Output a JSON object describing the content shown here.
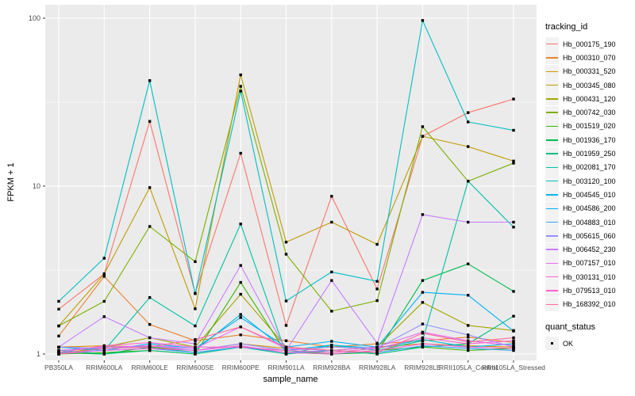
{
  "figure": {
    "background": "#FFFFFF",
    "panel_background": "#EBEBEB",
    "grid_color": "#FFFFFF",
    "axis_text_color": "#4D4D4D",
    "tick_mark_color": "#333333",
    "point_color": "#000000",
    "legend_key_background": "#F2F2F2"
  },
  "legend": {
    "title": "tracking_id",
    "secondary_title": "quant_status",
    "secondary_items": [
      {
        "label": "OK"
      }
    ]
  },
  "chart_data": {
    "type": "line",
    "title": "",
    "xlabel": "sample_name",
    "ylabel": "FPKM + 1",
    "y_scale": "log10",
    "ylim": [
      1,
      100
    ],
    "y_major_ticks": [
      1,
      10,
      100
    ],
    "y_minor_breaks": [
      3.162,
      31.623
    ],
    "grid": true,
    "legend_position": "right",
    "quant_status": "OK",
    "categories": [
      "PB350LA",
      "RRIM600LA",
      "RRIM600LE",
      "RRIM600SE",
      "RRIM600PE",
      "RRIM901LA",
      "RRIM928BA",
      "RRIM928LA",
      "RRIM928LE",
      "RRII105LA_Control",
      "RRII105LA_Stressed"
    ],
    "series": [
      {
        "name": "Hb_000175_190",
        "color": "#F8766D",
        "values": [
          1.85,
          3.0,
          24.3,
          2.3,
          15.7,
          1.48,
          8.7,
          2.44,
          19.8,
          27.4,
          33.0
        ]
      },
      {
        "name": "Hb_000310_070",
        "color": "#EA8331",
        "values": [
          1.28,
          2.9,
          1.5,
          1.2,
          1.3,
          1.2,
          1.1,
          1.15,
          1.2,
          1.26,
          1.17
        ]
      },
      {
        "name": "Hb_000331_520",
        "color": "#D89000",
        "values": [
          1.1,
          1.12,
          1.1,
          1.05,
          1.15,
          1.08,
          1.05,
          1.1,
          1.15,
          1.12,
          1.1
        ]
      },
      {
        "name": "Hb_000345_080",
        "color": "#C09B00",
        "values": [
          1.47,
          3.0,
          9.8,
          1.86,
          46.0,
          4.64,
          6.1,
          4.5,
          19.8,
          17.2,
          14.1
        ]
      },
      {
        "name": "Hb_000431_120",
        "color": "#A3A500",
        "values": [
          1.0,
          1.1,
          1.25,
          1.1,
          2.27,
          1.1,
          1.05,
          1.1,
          2.03,
          1.48,
          1.38
        ]
      },
      {
        "name": "Hb_000742_030",
        "color": "#7CAE00",
        "values": [
          1.47,
          2.06,
          5.75,
          3.55,
          39.3,
          3.93,
          1.8,
          2.08,
          22.6,
          10.7,
          13.7
        ]
      },
      {
        "name": "Hb_001519_020",
        "color": "#39B600",
        "values": [
          1.0,
          1.02,
          1.05,
          1.0,
          2.67,
          1.02,
          1.0,
          1.05,
          1.1,
          1.05,
          1.08
        ]
      },
      {
        "name": "Hb_001936_170",
        "color": "#00BB4E",
        "values": [
          1.02,
          1.0,
          1.1,
          1.02,
          1.1,
          1.05,
          1.0,
          1.02,
          2.74,
          3.44,
          2.36
        ]
      },
      {
        "name": "Hb_001959_250",
        "color": "#00BF7D",
        "values": [
          1.05,
          1.0,
          1.05,
          1.0,
          1.1,
          1.0,
          1.05,
          1.0,
          1.1,
          1.15,
          1.68
        ]
      },
      {
        "name": "Hb_002081_170",
        "color": "#00C1A3",
        "values": [
          1.1,
          1.05,
          2.17,
          1.47,
          5.95,
          1.0,
          1.13,
          1.05,
          1.2,
          10.7,
          5.7
        ]
      },
      {
        "name": "Hb_003120_100",
        "color": "#00BFC4",
        "values": [
          2.06,
          3.72,
          42.5,
          2.29,
          36.8,
          2.07,
          3.08,
          2.71,
          97.0,
          24.1,
          21.5
        ]
      },
      {
        "name": "Hb_004545_010",
        "color": "#00BAE0",
        "values": [
          1.05,
          1.08,
          1.12,
          1.05,
          1.72,
          1.05,
          1.13,
          1.08,
          1.22,
          1.1,
          1.15
        ]
      },
      {
        "name": "Hb_004586_200",
        "color": "#00B0F6",
        "values": [
          1.1,
          1.05,
          1.15,
          1.08,
          1.65,
          1.1,
          1.19,
          1.1,
          2.33,
          2.24,
          1.37
        ]
      },
      {
        "name": "Hb_004883_010",
        "color": "#35A2FF",
        "values": [
          1.02,
          1.05,
          1.08,
          1.02,
          1.1,
          1.02,
          1.05,
          1.02,
          1.12,
          1.08,
          1.05
        ]
      },
      {
        "name": "Hb_005615_060",
        "color": "#9590FF",
        "values": [
          1.1,
          1.08,
          1.12,
          1.05,
          1.15,
          1.05,
          1.1,
          1.08,
          1.51,
          1.3,
          1.1
        ]
      },
      {
        "name": "Hb_006452_230",
        "color": "#C77CFF",
        "values": [
          1.1,
          1.67,
          1.25,
          1.15,
          3.37,
          1.05,
          2.74,
          1.16,
          6.77,
          6.1,
          6.1
        ]
      },
      {
        "name": "Hb_007157_010",
        "color": "#E76BF3",
        "values": [
          1.05,
          1.1,
          1.12,
          1.08,
          1.45,
          1.08,
          1.05,
          1.1,
          1.35,
          1.2,
          1.12
        ]
      },
      {
        "name": "Hb_030131_010",
        "color": "#FA62DB",
        "values": [
          1.0,
          1.05,
          1.08,
          1.05,
          1.12,
          1.02,
          1.0,
          1.05,
          1.15,
          1.1,
          1.08
        ]
      },
      {
        "name": "Hb_079513_010",
        "color": "#FF61CC",
        "values": [
          1.02,
          1.12,
          1.17,
          1.1,
          1.1,
          1.05,
          1.02,
          1.08,
          1.25,
          1.15,
          1.2
        ]
      },
      {
        "name": "Hb_168392_010",
        "color": "#FF6A98",
        "values": [
          1.0,
          1.08,
          1.1,
          1.22,
          1.45,
          1.1,
          1.05,
          1.02,
          1.33,
          1.18,
          1.25
        ]
      }
    ]
  }
}
